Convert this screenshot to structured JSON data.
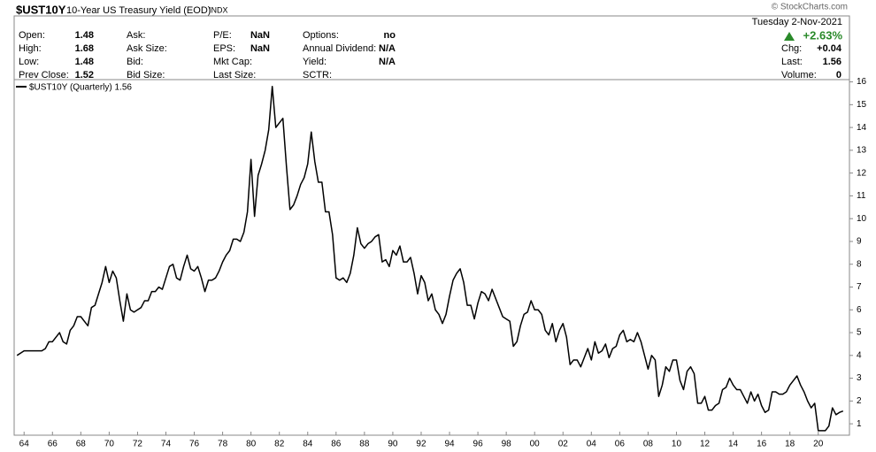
{
  "chart_data": {
    "type": "line",
    "title": "$UST10Y",
    "subtitle": "10-Year US Treasury Yield (EOD)",
    "exchange": "INDX",
    "watermark": "© StockCharts.com",
    "quote": {
      "date": "Tuesday  2-Nov-2021",
      "change_pct": "+2.63%",
      "columns": [
        [
          {
            "label": "Open:",
            "value": "1.48"
          },
          {
            "label": "High:",
            "value": "1.68"
          },
          {
            "label": "Low:",
            "value": "1.48"
          },
          {
            "label": "Prev Close:",
            "value": "1.52"
          }
        ],
        [
          {
            "label": "Ask:"
          },
          {
            "label": "Ask Size:"
          },
          {
            "label": "Bid:"
          },
          {
            "label": "Bid Size:"
          }
        ],
        [
          {
            "label": "P/E:",
            "value": "NaN"
          },
          {
            "label": "EPS:",
            "value": "NaN"
          },
          {
            "label": "Mkt Cap:"
          },
          {
            "label": "Last Size:"
          }
        ],
        [
          {
            "label": "Options:",
            "value": "no"
          },
          {
            "label": "Annual Dividend:",
            "value": "N/A"
          },
          {
            "label": "Yield:",
            "value": "N/A"
          },
          {
            "label": "SCTR:"
          }
        ]
      ],
      "right": [
        {
          "label": "Chg:",
          "value": "+0.04"
        },
        {
          "label": "Last:",
          "value": "1.56"
        },
        {
          "label": "Volume:",
          "value": "0"
        }
      ]
    },
    "x": [
      1963.5,
      1963.75,
      1964,
      1964.25,
      1964.5,
      1964.75,
      1965,
      1965.25,
      1965.5,
      1965.75,
      1966,
      1966.25,
      1966.5,
      1966.75,
      1967,
      1967.25,
      1967.5,
      1967.75,
      1968,
      1968.25,
      1968.5,
      1968.75,
      1969,
      1969.25,
      1969.5,
      1969.75,
      1970,
      1970.25,
      1970.5,
      1970.75,
      1971,
      1971.25,
      1971.5,
      1971.75,
      1972,
      1972.25,
      1972.5,
      1972.75,
      1973,
      1973.25,
      1973.5,
      1973.75,
      1974,
      1974.25,
      1974.5,
      1974.75,
      1975,
      1975.25,
      1975.5,
      1975.75,
      1976,
      1976.25,
      1976.5,
      1976.75,
      1977,
      1977.25,
      1977.5,
      1977.75,
      1978,
      1978.25,
      1978.5,
      1978.75,
      1979,
      1979.25,
      1979.5,
      1979.75,
      1980,
      1980.25,
      1980.5,
      1980.75,
      1981,
      1981.25,
      1981.5,
      1981.75,
      1982,
      1982.25,
      1982.5,
      1982.75,
      1983,
      1983.25,
      1983.5,
      1983.75,
      1984,
      1984.25,
      1984.5,
      1984.75,
      1985,
      1985.25,
      1985.5,
      1985.75,
      1986,
      1986.25,
      1986.5,
      1986.75,
      1987,
      1987.25,
      1987.5,
      1987.75,
      1988,
      1988.25,
      1988.5,
      1988.75,
      1989,
      1989.25,
      1989.5,
      1989.75,
      1990,
      1990.25,
      1990.5,
      1990.75,
      1991,
      1991.25,
      1991.5,
      1991.75,
      1992,
      1992.25,
      1992.5,
      1992.75,
      1993,
      1993.25,
      1993.5,
      1993.75,
      1994,
      1994.25,
      1994.5,
      1994.75,
      1995,
      1995.25,
      1995.5,
      1995.75,
      1996,
      1996.25,
      1996.5,
      1996.75,
      1997,
      1997.25,
      1997.5,
      1997.75,
      1998,
      1998.25,
      1998.5,
      1998.75,
      1999,
      1999.25,
      1999.5,
      1999.75,
      2000,
      2000.25,
      2000.5,
      2000.75,
      2001,
      2001.25,
      2001.5,
      2001.75,
      2002,
      2002.25,
      2002.5,
      2002.75,
      2003,
      2003.25,
      2003.5,
      2003.75,
      2004,
      2004.25,
      2004.5,
      2004.75,
      2005,
      2005.25,
      2005.5,
      2005.75,
      2006,
      2006.25,
      2006.5,
      2006.75,
      2007,
      2007.25,
      2007.5,
      2007.75,
      2008,
      2008.25,
      2008.5,
      2008.75,
      2009,
      2009.25,
      2009.5,
      2009.75,
      2010,
      2010.25,
      2010.5,
      2010.75,
      2011,
      2011.25,
      2011.5,
      2011.75,
      2012,
      2012.25,
      2012.5,
      2012.75,
      2013,
      2013.25,
      2013.5,
      2013.75,
      2014,
      2014.25,
      2014.5,
      2014.75,
      2015,
      2015.25,
      2015.5,
      2015.75,
      2016,
      2016.25,
      2016.5,
      2016.75,
      2017,
      2017.25,
      2017.5,
      2017.75,
      2018,
      2018.25,
      2018.5,
      2018.75,
      2019,
      2019.25,
      2019.5,
      2019.75,
      2020,
      2020.25,
      2020.5,
      2020.75,
      2021,
      2021.25,
      2021.5,
      2021.75
    ],
    "series": [
      {
        "name": "$UST10Y (Quarterly) 1.56",
        "color": "#000000",
        "values": [
          4.0,
          4.1,
          4.2,
          4.2,
          4.2,
          4.2,
          4.2,
          4.2,
          4.3,
          4.6,
          4.6,
          4.8,
          5.0,
          4.6,
          4.5,
          5.1,
          5.3,
          5.7,
          5.7,
          5.5,
          5.3,
          6.1,
          6.2,
          6.7,
          7.2,
          7.9,
          7.2,
          7.7,
          7.4,
          6.4,
          5.5,
          6.7,
          6.0,
          5.9,
          6.0,
          6.1,
          6.4,
          6.4,
          6.8,
          6.8,
          7.0,
          6.9,
          7.4,
          7.9,
          8.0,
          7.4,
          7.3,
          7.9,
          8.4,
          7.8,
          7.7,
          7.9,
          7.4,
          6.8,
          7.3,
          7.3,
          7.4,
          7.7,
          8.1,
          8.4,
          8.6,
          9.1,
          9.1,
          9.0,
          9.4,
          10.3,
          12.6,
          10.1,
          11.9,
          12.4,
          13.0,
          13.9,
          15.8,
          14.0,
          14.2,
          14.4,
          12.3,
          10.4,
          10.6,
          11.0,
          11.5,
          11.8,
          12.4,
          13.8,
          12.5,
          11.6,
          11.6,
          10.3,
          10.3,
          9.3,
          7.4,
          7.3,
          7.4,
          7.2,
          7.6,
          8.4,
          9.6,
          8.9,
          8.7,
          8.9,
          9.0,
          9.2,
          9.3,
          8.1,
          8.2,
          7.9,
          8.6,
          8.4,
          8.8,
          8.1,
          8.1,
          8.3,
          7.6,
          6.7,
          7.5,
          7.2,
          6.4,
          6.7,
          6.0,
          5.8,
          5.4,
          5.8,
          6.6,
          7.3,
          7.6,
          7.8,
          7.2,
          6.2,
          6.2,
          5.6,
          6.3,
          6.8,
          6.7,
          6.4,
          6.9,
          6.5,
          6.1,
          5.7,
          5.6,
          5.5,
          4.4,
          4.6,
          5.3,
          5.8,
          5.9,
          6.4,
          6.0,
          6.0,
          5.8,
          5.1,
          4.9,
          5.4,
          4.6,
          5.1,
          5.4,
          4.8,
          3.6,
          3.8,
          3.8,
          3.5,
          3.9,
          4.3,
          3.8,
          4.6,
          4.1,
          4.2,
          4.5,
          3.9,
          4.3,
          4.4,
          4.9,
          5.1,
          4.6,
          4.7,
          4.6,
          5.0,
          4.6,
          4.0,
          3.4,
          4.0,
          3.8,
          2.2,
          2.7,
          3.5,
          3.3,
          3.8,
          3.8,
          2.9,
          2.5,
          3.3,
          3.5,
          3.2,
          1.9,
          1.9,
          2.2,
          1.6,
          1.6,
          1.8,
          1.9,
          2.5,
          2.6,
          3.0,
          2.7,
          2.5,
          2.5,
          2.2,
          1.9,
          2.4,
          2.0,
          2.3,
          1.8,
          1.5,
          1.6,
          2.4,
          2.4,
          2.3,
          2.3,
          2.4,
          2.7,
          2.9,
          3.1,
          2.7,
          2.4,
          2.0,
          1.7,
          1.9,
          0.7,
          0.7,
          0.7,
          0.9,
          1.7,
          1.4,
          1.5,
          1.56
        ]
      }
    ],
    "xlim": [
      1963.3,
      2022.2
    ],
    "ylim": [
      0.5,
      16.1
    ],
    "xticks": [
      {
        "value": 1964,
        "label": "64"
      },
      {
        "value": 1966,
        "label": "66"
      },
      {
        "value": 1968,
        "label": "68"
      },
      {
        "value": 1970,
        "label": "70"
      },
      {
        "value": 1972,
        "label": "72"
      },
      {
        "value": 1974,
        "label": "74"
      },
      {
        "value": 1976,
        "label": "76"
      },
      {
        "value": 1978,
        "label": "78"
      },
      {
        "value": 1980,
        "label": "80"
      },
      {
        "value": 1982,
        "label": "82"
      },
      {
        "value": 1984,
        "label": "84"
      },
      {
        "value": 1986,
        "label": "86"
      },
      {
        "value": 1988,
        "label": "88"
      },
      {
        "value": 1990,
        "label": "90"
      },
      {
        "value": 1992,
        "label": "92"
      },
      {
        "value": 1994,
        "label": "94"
      },
      {
        "value": 1996,
        "label": "96"
      },
      {
        "value": 1998,
        "label": "98"
      },
      {
        "value": 2000,
        "label": "00"
      },
      {
        "value": 2002,
        "label": "02"
      },
      {
        "value": 2004,
        "label": "04"
      },
      {
        "value": 2006,
        "label": "06"
      },
      {
        "value": 2008,
        "label": "08"
      },
      {
        "value": 2010,
        "label": "10"
      },
      {
        "value": 2012,
        "label": "12"
      },
      {
        "value": 2014,
        "label": "14"
      },
      {
        "value": 2016,
        "label": "16"
      },
      {
        "value": 2018,
        "label": "18"
      },
      {
        "value": 2020,
        "label": "20"
      }
    ],
    "yticks": [
      1,
      2,
      3,
      4,
      5,
      6,
      7,
      8,
      9,
      10,
      11,
      12,
      13,
      14,
      15,
      16
    ],
    "grid": false
  }
}
